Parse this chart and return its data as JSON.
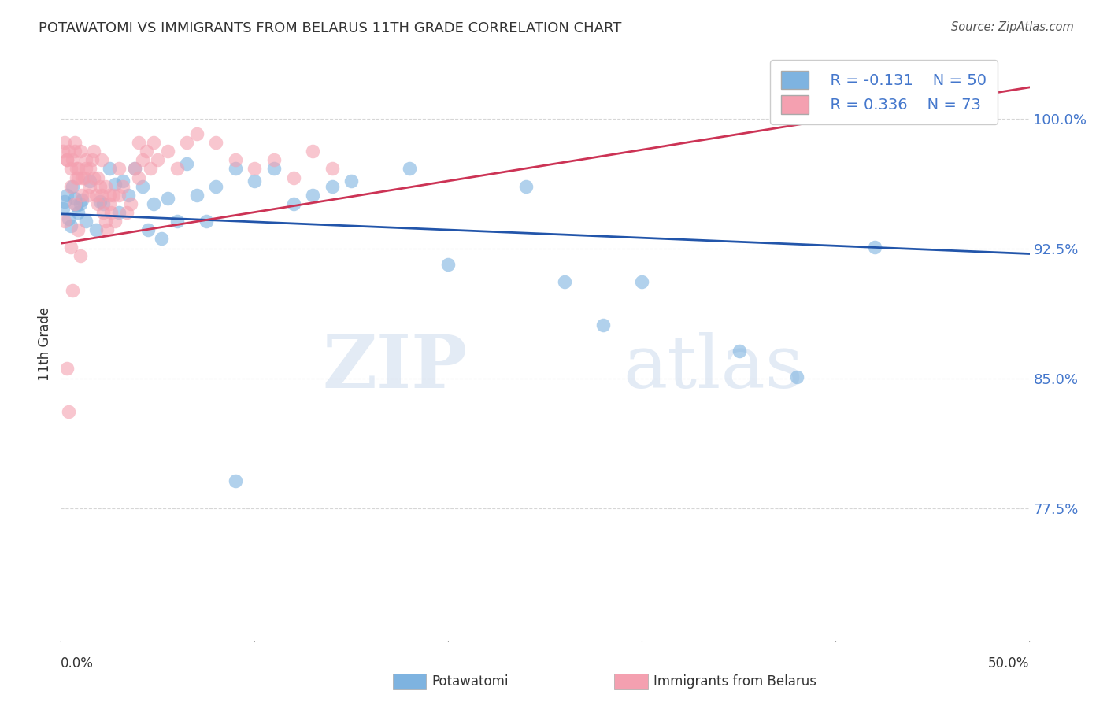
{
  "title": "POTAWATOMI VS IMMIGRANTS FROM BELARUS 11TH GRADE CORRELATION CHART",
  "source": "Source: ZipAtlas.com",
  "ylabel": "11th Grade",
  "yticks": [
    77.5,
    85.0,
    92.5,
    100.0
  ],
  "ylim": [
    70.0,
    104.0
  ],
  "xlim": [
    0.0,
    0.5
  ],
  "legend_blue_r": "R = -0.131",
  "legend_blue_n": "N = 50",
  "legend_pink_r": "R = 0.336",
  "legend_pink_n": "N = 73",
  "blue_color": "#7EB3E0",
  "pink_color": "#F4A0B0",
  "line_blue": "#2255AA",
  "line_pink": "#CC3355",
  "blue_line_x": [
    0.0,
    0.5
  ],
  "blue_line_y": [
    94.5,
    92.2
  ],
  "pink_line_x": [
    0.0,
    0.5
  ],
  "pink_line_y": [
    92.8,
    101.8
  ],
  "blue_scatter": [
    [
      0.001,
      94.8
    ],
    [
      0.002,
      95.2
    ],
    [
      0.003,
      95.6
    ],
    [
      0.004,
      94.2
    ],
    [
      0.005,
      93.8
    ],
    [
      0.006,
      96.1
    ],
    [
      0.007,
      95.4
    ],
    [
      0.008,
      95.0
    ],
    [
      0.009,
      94.6
    ],
    [
      0.01,
      95.1
    ],
    [
      0.011,
      95.3
    ],
    [
      0.013,
      94.1
    ],
    [
      0.015,
      96.4
    ],
    [
      0.018,
      93.6
    ],
    [
      0.02,
      95.2
    ],
    [
      0.022,
      95.1
    ],
    [
      0.025,
      97.1
    ],
    [
      0.028,
      96.2
    ],
    [
      0.03,
      94.6
    ],
    [
      0.032,
      96.4
    ],
    [
      0.035,
      95.6
    ],
    [
      0.038,
      97.1
    ],
    [
      0.042,
      96.1
    ],
    [
      0.045,
      93.6
    ],
    [
      0.048,
      95.1
    ],
    [
      0.052,
      93.1
    ],
    [
      0.055,
      95.4
    ],
    [
      0.06,
      94.1
    ],
    [
      0.065,
      97.4
    ],
    [
      0.07,
      95.6
    ],
    [
      0.075,
      94.1
    ],
    [
      0.08,
      96.1
    ],
    [
      0.09,
      97.1
    ],
    [
      0.1,
      96.4
    ],
    [
      0.11,
      97.1
    ],
    [
      0.12,
      95.1
    ],
    [
      0.13,
      95.6
    ],
    [
      0.14,
      96.1
    ],
    [
      0.15,
      96.4
    ],
    [
      0.18,
      97.1
    ],
    [
      0.2,
      91.6
    ],
    [
      0.24,
      96.1
    ],
    [
      0.26,
      90.6
    ],
    [
      0.28,
      88.1
    ],
    [
      0.3,
      90.6
    ],
    [
      0.35,
      86.6
    ],
    [
      0.38,
      85.1
    ],
    [
      0.42,
      92.6
    ],
    [
      0.45,
      100.4
    ],
    [
      0.09,
      79.1
    ]
  ],
  "pink_scatter": [
    [
      0.001,
      98.1
    ],
    [
      0.002,
      98.6
    ],
    [
      0.003,
      97.6
    ],
    [
      0.004,
      98.1
    ],
    [
      0.005,
      97.1
    ],
    [
      0.006,
      97.6
    ],
    [
      0.007,
      98.6
    ],
    [
      0.008,
      97.1
    ],
    [
      0.009,
      96.6
    ],
    [
      0.01,
      98.1
    ],
    [
      0.012,
      96.6
    ],
    [
      0.013,
      97.1
    ],
    [
      0.014,
      95.6
    ],
    [
      0.015,
      96.1
    ],
    [
      0.016,
      97.6
    ],
    [
      0.017,
      96.6
    ],
    [
      0.018,
      95.6
    ],
    [
      0.019,
      95.1
    ],
    [
      0.02,
      96.1
    ],
    [
      0.021,
      95.6
    ],
    [
      0.022,
      94.6
    ],
    [
      0.023,
      94.1
    ],
    [
      0.024,
      93.6
    ],
    [
      0.025,
      95.1
    ],
    [
      0.026,
      94.6
    ],
    [
      0.027,
      95.6
    ],
    [
      0.028,
      94.1
    ],
    [
      0.03,
      95.6
    ],
    [
      0.032,
      96.1
    ],
    [
      0.034,
      94.6
    ],
    [
      0.036,
      95.1
    ],
    [
      0.038,
      97.1
    ],
    [
      0.04,
      96.6
    ],
    [
      0.042,
      97.6
    ],
    [
      0.044,
      98.1
    ],
    [
      0.046,
      97.1
    ],
    [
      0.048,
      98.6
    ],
    [
      0.05,
      97.6
    ],
    [
      0.055,
      98.1
    ],
    [
      0.06,
      97.1
    ],
    [
      0.065,
      98.6
    ],
    [
      0.07,
      99.1
    ],
    [
      0.08,
      98.6
    ],
    [
      0.09,
      97.6
    ],
    [
      0.1,
      97.1
    ],
    [
      0.11,
      97.6
    ],
    [
      0.12,
      96.6
    ],
    [
      0.13,
      98.1
    ],
    [
      0.14,
      97.1
    ],
    [
      0.003,
      97.6
    ],
    [
      0.005,
      96.1
    ],
    [
      0.007,
      98.1
    ],
    [
      0.009,
      97.1
    ],
    [
      0.011,
      96.6
    ],
    [
      0.013,
      97.6
    ],
    [
      0.015,
      97.1
    ],
    [
      0.017,
      98.1
    ],
    [
      0.019,
      96.6
    ],
    [
      0.021,
      97.6
    ],
    [
      0.023,
      96.1
    ],
    [
      0.025,
      95.6
    ],
    [
      0.03,
      97.1
    ],
    [
      0.04,
      98.6
    ],
    [
      0.003,
      85.6
    ],
    [
      0.004,
      83.1
    ],
    [
      0.005,
      92.6
    ],
    [
      0.006,
      90.1
    ],
    [
      0.007,
      95.1
    ],
    [
      0.002,
      94.1
    ],
    [
      0.008,
      96.6
    ],
    [
      0.009,
      93.6
    ],
    [
      0.01,
      92.1
    ],
    [
      0.011,
      95.6
    ]
  ],
  "watermark_zip": "ZIP",
  "watermark_atlas": "atlas",
  "bg_color": "#FFFFFF",
  "tick_color": "#4477CC",
  "grid_color": "#CCCCCC"
}
